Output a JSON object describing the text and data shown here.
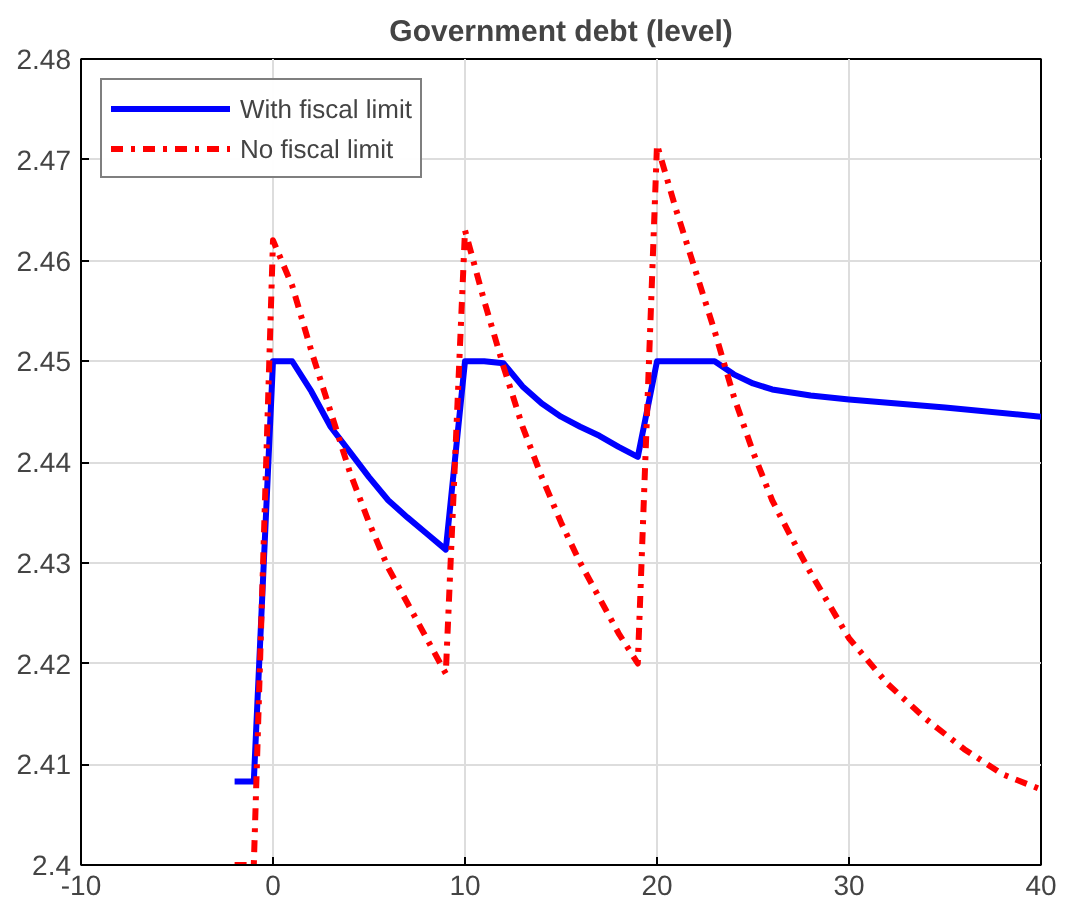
{
  "chart_data": {
    "type": "line",
    "title": "Government debt (level)",
    "xlim": [
      -10,
      40
    ],
    "xticks": [
      -10,
      0,
      10,
      20,
      30,
      40
    ],
    "ylim": [
      2.4,
      2.48
    ],
    "yticks": [
      2.4,
      2.41,
      2.42,
      2.43,
      2.44,
      2.45,
      2.46,
      2.47,
      2.48
    ],
    "grid": true,
    "legend": "top left",
    "series": [
      {
        "name": "With fiscal limit",
        "color": "#0000ff",
        "line_style": "solid",
        "x": [
          -2,
          -1,
          0,
          1,
          2,
          3,
          4,
          5,
          6,
          7,
          8,
          9,
          10,
          11,
          12,
          13,
          14,
          15,
          16,
          17,
          18,
          19,
          20,
          21,
          22,
          23,
          24,
          25,
          26,
          28,
          30,
          35,
          40
        ],
        "values": [
          2.4083,
          2.4083,
          2.45,
          2.45,
          2.447,
          2.4435,
          2.441,
          2.4385,
          2.4362,
          2.4345,
          2.4329,
          2.4313,
          2.45,
          2.45,
          2.4498,
          2.4475,
          2.4458,
          2.4445,
          2.4435,
          2.4426,
          2.4415,
          2.4405,
          2.45,
          2.45,
          2.45,
          2.45,
          2.4487,
          2.4478,
          2.4472,
          2.4466,
          2.4462,
          2.4454,
          2.4445
        ]
      },
      {
        "name": "No fiscal limit",
        "color": "#ff0000",
        "line_style": "dashdot",
        "x": [
          -2,
          -1,
          0,
          1,
          2,
          3,
          4,
          5,
          6,
          7,
          8,
          9,
          10,
          11,
          12,
          13,
          14,
          15,
          16,
          17,
          18,
          19,
          20,
          21,
          22,
          23,
          24,
          25,
          26,
          27,
          28,
          30,
          32,
          34,
          36,
          38,
          40
        ],
        "values": [
          2.4,
          2.4,
          2.462,
          2.4575,
          2.451,
          2.445,
          2.439,
          2.434,
          2.4295,
          2.426,
          2.4225,
          2.419,
          2.463,
          2.456,
          2.4495,
          2.4435,
          2.4385,
          2.434,
          2.43,
          2.4265,
          2.423,
          2.42,
          2.4715,
          2.465,
          2.459,
          2.453,
          2.4465,
          2.441,
          2.4362,
          2.4325,
          2.429,
          2.4225,
          2.418,
          2.4145,
          2.4115,
          2.409,
          2.4075
        ]
      }
    ]
  }
}
